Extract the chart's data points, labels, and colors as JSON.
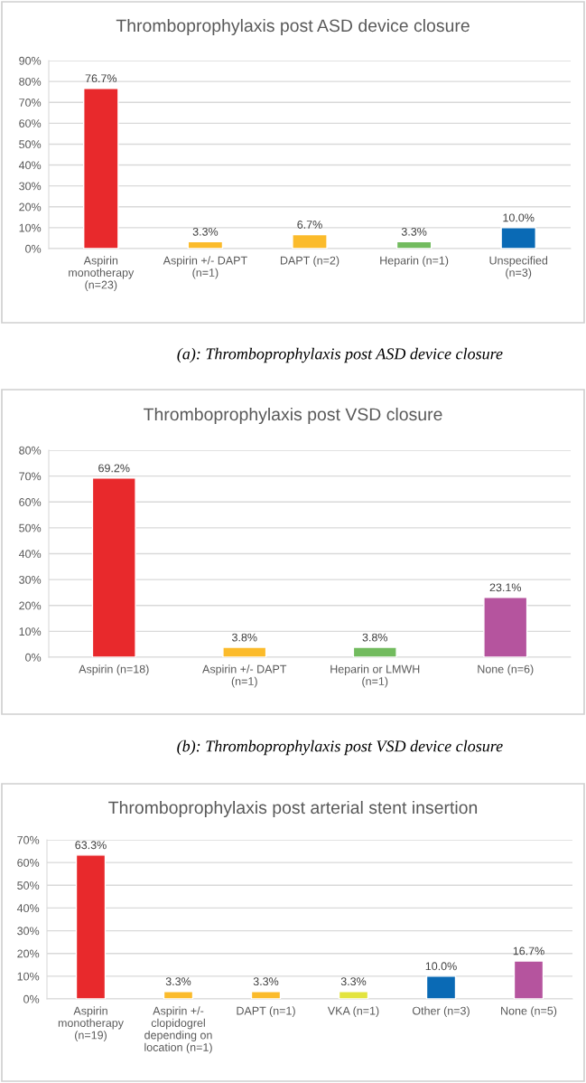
{
  "chart_data": [
    {
      "type": "bar",
      "title": "Thromboprophylaxis post ASD device closure",
      "categories": [
        "Aspirin\nmonotherapy\n(n=23)",
        "Aspirin +/- DAPT\n(n=1)",
        "DAPT (n=2)",
        "Heparin (n=1)",
        "Unspecified\n(n=3)"
      ],
      "values": [
        76.7,
        3.3,
        6.7,
        3.3,
        10.0
      ],
      "value_labels": [
        "76.7%",
        "3.3%",
        "6.7%",
        "3.3%",
        "10.0%"
      ],
      "colors": [
        "#e8292c",
        "#fbbb2b",
        "#fbbb2b",
        "#72bb5e",
        "#0a6ab5"
      ],
      "ylim": [
        0,
        90
      ],
      "yticks": [
        {
          "value": 0,
          "label": "0%"
        },
        {
          "value": 10,
          "label": "10%"
        },
        {
          "value": 20,
          "label": "20%"
        },
        {
          "value": 30,
          "label": "30%"
        },
        {
          "value": 40,
          "label": "40%"
        },
        {
          "value": 50,
          "label": "50%"
        },
        {
          "value": 60,
          "label": "60%"
        },
        {
          "value": 70,
          "label": "70%"
        },
        {
          "value": 80,
          "label": "80%"
        },
        {
          "value": 90,
          "label": "90%"
        }
      ],
      "grid": "y",
      "annotations": [
        "(a): Thromboprophylaxis post ASD device closure"
      ]
    },
    {
      "type": "bar",
      "title": "Thromboprophylaxis post VSD closure",
      "categories": [
        "Aspirin (n=18)",
        "Aspirin +/- DAPT\n(n=1)",
        "Heparin or LMWH\n(n=1)",
        "None (n=6)"
      ],
      "values": [
        69.2,
        3.8,
        3.8,
        23.1
      ],
      "value_labels": [
        "69.2%",
        "3.8%",
        "3.8%",
        "23.1%"
      ],
      "colors": [
        "#e8292c",
        "#fbbb2b",
        "#72bb5e",
        "#b5549e"
      ],
      "ylim": [
        0,
        80
      ],
      "yticks": [
        {
          "value": 0,
          "label": "0%"
        },
        {
          "value": 10,
          "label": "10%"
        },
        {
          "value": 20,
          "label": "20%"
        },
        {
          "value": 30,
          "label": "30%"
        },
        {
          "value": 40,
          "label": "40%"
        },
        {
          "value": 50,
          "label": "50%"
        },
        {
          "value": 60,
          "label": "60%"
        },
        {
          "value": 70,
          "label": "70%"
        },
        {
          "value": 80,
          "label": "80%"
        }
      ],
      "grid": "y",
      "annotations": [
        "(b): Thromboprophylaxis post VSD device closure"
      ]
    },
    {
      "type": "bar",
      "title": "Thromboprophylaxis post arterial stent insertion",
      "categories": [
        "Aspirin\nmonotherapy\n(n=19)",
        "Aspirin +/-\nclopidogrel\ndepending on\nlocation (n=1)",
        "DAPT (n=1)",
        "VKA (n=1)",
        "Other (n=3)",
        "None (n=5)"
      ],
      "values": [
        63.3,
        3.3,
        3.3,
        3.3,
        10.0,
        16.7
      ],
      "value_labels": [
        "63.3%",
        "3.3%",
        "3.3%",
        "3.3%",
        "10.0%",
        "16.7%"
      ],
      "colors": [
        "#e8292c",
        "#fbbb2b",
        "#fbbb2b",
        "#e3e43f",
        "#0a6ab5",
        "#b5549e"
      ],
      "ylim": [
        0,
        70
      ],
      "yticks": [
        {
          "value": 0,
          "label": "0%"
        },
        {
          "value": 10,
          "label": "10%"
        },
        {
          "value": 20,
          "label": "20%"
        },
        {
          "value": 30,
          "label": "30%"
        },
        {
          "value": 40,
          "label": "40%"
        },
        {
          "value": 50,
          "label": "50%"
        },
        {
          "value": 60,
          "label": "60%"
        },
        {
          "value": 70,
          "label": "70%"
        }
      ],
      "grid": "y"
    }
  ]
}
